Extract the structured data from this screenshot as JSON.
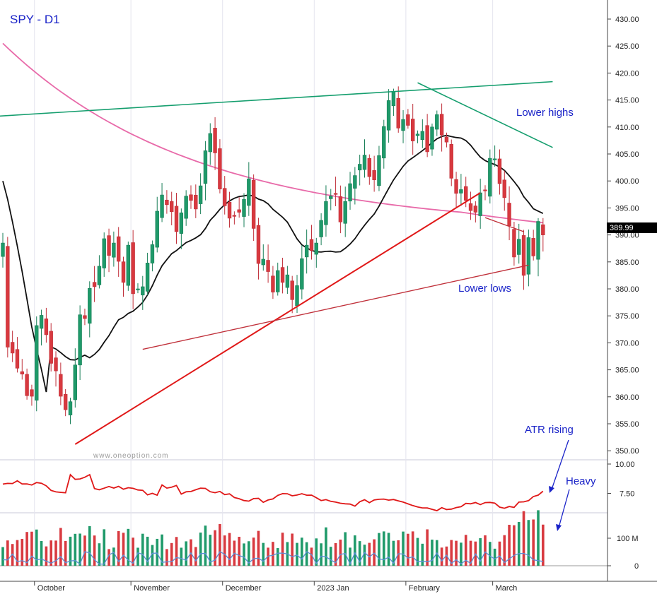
{
  "chart_data": {
    "type": "candlestick",
    "title": "SPY - D1",
    "watermark": "www.oneoption.com",
    "last_price": "389.99",
    "price_axis": {
      "ylim": [
        347,
        433
      ],
      "ticks": [
        "430.00",
        "425.00",
        "420.00",
        "415.00",
        "410.00",
        "405.00",
        "400.00",
        "395.00",
        "390.00",
        "385.00",
        "380.00",
        "375.00",
        "370.00",
        "365.00",
        "360.00",
        "355.00",
        "350.00"
      ]
    },
    "atr_axis": {
      "ylim": [
        4.5,
        11
      ],
      "ticks": [
        "10.00",
        "7.50"
      ]
    },
    "volume_axis": {
      "ticks": [
        "100 M",
        "0"
      ]
    },
    "x_labels": [
      {
        "label": "October",
        "bar": 7
      },
      {
        "label": "November",
        "bar": 27
      },
      {
        "label": "December",
        "bar": 46
      },
      {
        "label": "2023 Jan",
        "bar": 65
      },
      {
        "label": "February",
        "bar": 84
      },
      {
        "label": "March",
        "bar": 102
      }
    ],
    "annotations": {
      "lower_highs": "Lower highs",
      "lower_lows": "Lower lows",
      "atr_rising": "ATR rising",
      "heavy": "Heavy"
    },
    "closes": [
      388.5,
      369.2,
      368.1,
      365.3,
      364.2,
      360.2,
      360.1,
      373.2,
      375.1,
      371.5,
      366.2,
      364.8,
      360.1,
      357.6,
      359.1,
      365.9,
      375.2,
      374.5,
      380.1,
      380.4,
      384.2,
      389.3,
      386.2,
      388.5,
      385.1,
      381.2,
      388.1,
      379.1,
      380.0,
      380.4,
      384.8,
      388.2,
      394.4,
      397.4,
      395.6,
      394.3,
      390.6,
      394.1,
      397.2,
      396.4,
      394.8,
      399.1,
      405.6,
      408.8,
      405.2,
      398.5,
      395.4,
      393.1,
      393.5,
      394.2,
      396.6,
      400.4,
      391.2,
      384.7,
      385.5,
      383.2,
      379.4,
      383.4,
      381.2,
      382.6,
      378.0,
      380.6,
      385.6,
      388.1,
      387.1,
      388.5,
      392.7,
      396.2,
      397.2,
      397.5,
      392.4,
      396.2,
      399.5,
      401.0,
      403.1,
      404.8,
      400.8,
      400.2,
      404.7,
      410.1,
      414.9,
      416.5,
      409.8,
      411.4,
      410.3,
      407.4,
      408.7,
      409.2,
      405.4,
      410.0,
      412.3,
      408.5,
      407.2,
      400.5,
      397.7,
      398.4,
      396.4,
      394.5,
      394.2,
      397.8,
      398.2,
      404.2,
      404.1,
      399.5,
      396.9,
      391.7,
      385.9,
      389.2,
      382.5,
      389.5,
      386.1,
      392.5,
      389.99
    ]
  }
}
